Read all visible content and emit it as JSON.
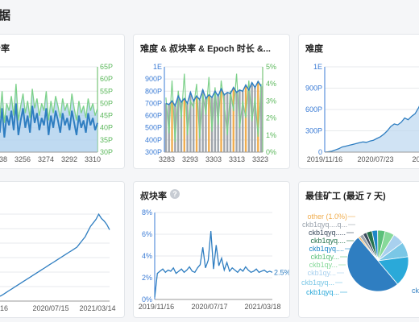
{
  "page": {
    "title": "据"
  },
  "colors": {
    "blue": "#2f7ec1",
    "green": "#7dd18a",
    "orange": "#f0ad4e",
    "grid": "#e7e9ec",
    "axis_blue": "#3a7bd5",
    "axis_green": "#5cb85c"
  },
  "cards": {
    "hash_rate": {
      "title": "哈希率"
    },
    "difficulty_combo": {
      "title": "难度 & 叔块率 & Epoch 时长 &..."
    },
    "difficulty": {
      "title": "难度"
    },
    "uncle_rate": {
      "title": "叔块率",
      "help_icon": "question-circle-icon"
    },
    "top_miners": {
      "title": "最佳矿工 (最近 7 天)"
    }
  },
  "chart_data": [
    {
      "id": "hash_rate",
      "type": "line",
      "x_ticks": [
        "3238",
        "3256",
        "3274",
        "3292",
        "3310"
      ],
      "y_right_ticks": [
        "30P",
        "35P",
        "40P",
        "45P",
        "50P",
        "55P",
        "60P",
        "65P"
      ],
      "ylim": [
        30,
        65
      ],
      "series": [
        {
          "values": [
            49,
            46,
            52,
            44,
            55,
            42,
            50,
            47,
            53,
            45,
            58,
            43,
            49,
            54,
            46,
            51,
            44,
            56,
            48,
            52,
            45,
            50,
            47,
            55,
            43,
            51,
            46,
            53,
            49,
            44,
            52,
            47,
            50,
            45,
            54,
            48,
            43,
            51,
            46,
            49,
            44,
            52,
            47,
            50,
            45,
            48
          ]
        },
        {
          "values": [
            44,
            40,
            46,
            38,
            48,
            36,
            45,
            41,
            47,
            39,
            50,
            37,
            43,
            48,
            40,
            45,
            38,
            49,
            42,
            46,
            39,
            44,
            41,
            48,
            37,
            45,
            40,
            47,
            43,
            38,
            46,
            41,
            44,
            39,
            47,
            42,
            37,
            45,
            40,
            43,
            38,
            46,
            41,
            44,
            39,
            42
          ]
        }
      ]
    },
    {
      "id": "difficulty_combo",
      "type": "bar",
      "x_ticks": [
        "3283",
        "3293",
        "3303",
        "3313",
        "3323"
      ],
      "y_left_ticks": [
        "300P",
        "400P",
        "500P",
        "600P",
        "700P",
        "800P",
        "900P",
        "1E"
      ],
      "y_right_ticks": [
        "0%",
        "1%",
        "2%",
        "3%",
        "4%",
        "5%"
      ],
      "ylim_left": [
        300,
        1000
      ],
      "ylim_right": [
        0,
        5
      ],
      "series": [
        {
          "values": [
            700,
            690,
            720,
            680,
            760,
            710,
            740,
            700,
            790,
            720,
            760,
            730,
            810,
            740,
            770,
            750,
            800,
            760,
            820,
            770,
            790,
            780,
            830,
            790,
            810,
            800,
            850,
            810,
            870,
            830,
            880,
            840
          ]
        },
        {
          "values": [
            3.2,
            1.1,
            4.2,
            0.6,
            3.6,
            2.0,
            4.6,
            1.0,
            3.0,
            2.6,
            4.0,
            0.8,
            3.4,
            2.2,
            4.4,
            1.2,
            3.8,
            1.6,
            4.2,
            2.8,
            1.0,
            3.6,
            2.4,
            4.6,
            1.4,
            3.0,
            2.0,
            4.2,
            1.8,
            3.2,
            0.9,
            4.0
          ]
        }
      ]
    },
    {
      "id": "difficulty",
      "type": "area",
      "x_ticks": [
        "2019/11/16",
        "2020/07/23",
        "2021/03/"
      ],
      "y_left_ticks": [
        "0",
        "300P",
        "600P",
        "900P",
        "1E"
      ],
      "ylim": [
        0,
        1000
      ],
      "values": [
        0,
        5,
        10,
        25,
        40,
        60,
        70,
        80,
        90,
        100,
        110,
        120,
        115,
        130,
        140,
        160,
        180,
        210,
        250,
        300,
        330,
        320,
        350,
        400,
        380,
        420,
        450,
        520,
        600,
        700,
        820,
        900,
        1000
      ]
    },
    {
      "id": "left_partial",
      "type": "line",
      "x_ticks": [
        "16",
        "2020/07/15",
        "2021/03/14"
      ],
      "values": [
        2,
        4,
        5,
        6,
        8,
        10,
        12,
        14,
        16,
        18,
        20,
        22,
        24,
        26,
        28,
        30,
        32,
        34,
        36,
        38,
        40,
        42,
        44,
        46,
        48,
        50,
        52,
        54,
        56,
        58,
        60,
        62,
        66,
        70,
        74,
        80,
        86,
        90,
        94,
        100,
        95,
        92,
        88,
        82
      ]
    },
    {
      "id": "uncle_rate",
      "type": "line",
      "x_ticks": [
        "2019/11/16",
        "2020/07/17",
        "2021/03/18"
      ],
      "y_left_ticks": [
        "0%",
        "2%",
        "4%",
        "6%",
        "8%"
      ],
      "ylim": [
        0,
        8
      ],
      "latest_label": "2.5%",
      "values": [
        0.2,
        2.4,
        2.6,
        2.8,
        2.5,
        2.7,
        2.6,
        2.9,
        2.4,
        2.6,
        2.8,
        2.5,
        2.7,
        3.0,
        2.6,
        2.5,
        2.9,
        3.2,
        4.8,
        2.9,
        3.6,
        6.3,
        2.8,
        5.0,
        3.1,
        3.8,
        2.7,
        3.4,
        2.6,
        2.9,
        2.7,
        2.5,
        2.8,
        2.6,
        3.0,
        2.7,
        2.5,
        2.6,
        2.8,
        2.5,
        2.6,
        2.7,
        2.5,
        2.6,
        2.5
      ]
    },
    {
      "id": "top_miners",
      "type": "pie",
      "labels": [
        "other (1.0%)",
        "ckb1qyq....q...",
        "ckb1qyq.....",
        "ckb1qyq....",
        "ckb1qyq....",
        "ckb1qy...",
        "ckb1qy...",
        "ckb1qy...",
        "ckb1qyq...",
        "ckb1qyq...",
        "ckb"
      ],
      "values": [
        1,
        2,
        2,
        3,
        3,
        4,
        5,
        6,
        8,
        16,
        50
      ],
      "colors": [
        "#f0ad4e",
        "#9aa3ad",
        "#3a4a5c",
        "#26734d",
        "#1e88c8",
        "#5bc07a",
        "#87d99a",
        "#a8d0ee",
        "#7ac7e6",
        "#2aa9d9",
        "#2f7ec1"
      ]
    }
  ]
}
